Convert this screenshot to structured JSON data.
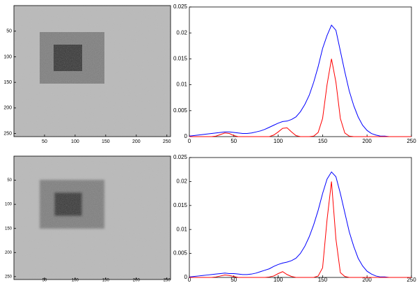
{
  "chart_data": [
    {
      "type": "image",
      "xlim": [
        0,
        256
      ],
      "ylim": [
        256,
        0
      ],
      "xticks": [
        50,
        100,
        150,
        200,
        250
      ],
      "yticks": [
        50,
        100,
        150,
        200,
        250
      ]
    },
    {
      "type": "line",
      "xlim": [
        0,
        250
      ],
      "ylim": [
        0,
        0.025
      ],
      "xticks": [
        0,
        50,
        100,
        150,
        200,
        250
      ],
      "yticks": [
        0,
        0.005,
        0.01,
        0.015,
        0.02,
        0.025
      ],
      "x": [
        0,
        5,
        10,
        15,
        20,
        25,
        30,
        35,
        40,
        45,
        50,
        55,
        60,
        65,
        70,
        75,
        80,
        85,
        90,
        95,
        100,
        105,
        110,
        115,
        120,
        125,
        130,
        135,
        140,
        145,
        150,
        155,
        160,
        165,
        170,
        175,
        180,
        185,
        190,
        195,
        200,
        205,
        210,
        215,
        220,
        225,
        230,
        235,
        240,
        245,
        250
      ],
      "series": [
        {
          "color": "#0000ff",
          "values": [
            0.0001,
            0.0002,
            0.0003,
            0.0004,
            0.0005,
            0.0006,
            0.0007,
            0.0008,
            0.0009,
            0.0009,
            0.0008,
            0.0007,
            0.0006,
            0.0006,
            0.0007,
            0.0009,
            0.0011,
            0.0014,
            0.0018,
            0.0022,
            0.0026,
            0.0029,
            0.003,
            0.0033,
            0.0038,
            0.0048,
            0.0062,
            0.008,
            0.0105,
            0.0135,
            0.017,
            0.0195,
            0.0215,
            0.0205,
            0.0165,
            0.0125,
            0.0088,
            0.006,
            0.0038,
            0.0022,
            0.0012,
            0.0006,
            0.0003,
            0.0001,
            0.0001,
            0,
            0,
            0,
            0,
            0,
            0
          ]
        },
        {
          "color": "#ff0000",
          "values": [
            0,
            0,
            0,
            0,
            0,
            0,
            0.0001,
            0.0004,
            0.0007,
            0.0006,
            0.0002,
            0,
            0,
            0,
            0,
            0,
            0,
            0,
            0,
            0.0003,
            0.0009,
            0.0016,
            0.0017,
            0.0009,
            0.0002,
            0,
            0,
            0,
            0.0001,
            0.0008,
            0.0035,
            0.01,
            0.015,
            0.0105,
            0.0035,
            0.0007,
            0.0001,
            0,
            0,
            0,
            0,
            0,
            0,
            0,
            0,
            0,
            0,
            0,
            0,
            0,
            0
          ]
        }
      ]
    },
    {
      "type": "image",
      "xlim": [
        0,
        256
      ],
      "ylim": [
        256,
        0
      ],
      "xticks": [
        50,
        100,
        150,
        200,
        250
      ],
      "yticks": [
        50,
        100,
        150,
        200,
        250
      ]
    },
    {
      "type": "line",
      "xlim": [
        0,
        250
      ],
      "ylim": [
        0,
        0.025
      ],
      "xticks": [
        0,
        50,
        100,
        150,
        200,
        250
      ],
      "yticks": [
        0,
        0.005,
        0.01,
        0.015,
        0.02,
        0.025
      ],
      "x": [
        0,
        5,
        10,
        15,
        20,
        25,
        30,
        35,
        40,
        45,
        50,
        55,
        60,
        65,
        70,
        75,
        80,
        85,
        90,
        95,
        100,
        105,
        110,
        115,
        120,
        125,
        130,
        135,
        140,
        145,
        150,
        155,
        160,
        165,
        170,
        175,
        180,
        185,
        190,
        195,
        200,
        205,
        210,
        215,
        220,
        225,
        230,
        235,
        240,
        245,
        250
      ],
      "series": [
        {
          "color": "#0000ff",
          "values": [
            0.0001,
            0.0002,
            0.0003,
            0.0004,
            0.0005,
            0.0006,
            0.0007,
            0.0008,
            0.0009,
            0.0008,
            0.0008,
            0.0007,
            0.0006,
            0.0006,
            0.0007,
            0.0009,
            0.0012,
            0.0015,
            0.0018,
            0.0023,
            0.0027,
            0.003,
            0.0032,
            0.0035,
            0.004,
            0.005,
            0.0065,
            0.0085,
            0.011,
            0.014,
            0.0175,
            0.0205,
            0.022,
            0.021,
            0.0175,
            0.0135,
            0.0095,
            0.0065,
            0.004,
            0.0024,
            0.0013,
            0.0007,
            0.0003,
            0.0001,
            0.0001,
            0,
            0,
            0,
            0,
            0,
            0
          ]
        },
        {
          "color": "#ff0000",
          "values": [
            0,
            0,
            0,
            0,
            0,
            0,
            0.0001,
            0.0003,
            0.0005,
            0.0004,
            0.0002,
            0,
            0,
            0,
            0,
            0,
            0,
            0,
            0.0001,
            0.0003,
            0.0008,
            0.0012,
            0.0006,
            0.0002,
            0,
            0,
            0,
            0,
            0,
            0.0003,
            0.002,
            0.012,
            0.02,
            0.008,
            0.001,
            0.0002,
            0,
            0,
            0,
            0,
            0,
            0,
            0,
            0,
            0,
            0,
            0,
            0,
            0,
            0,
            0
          ]
        }
      ]
    }
  ]
}
